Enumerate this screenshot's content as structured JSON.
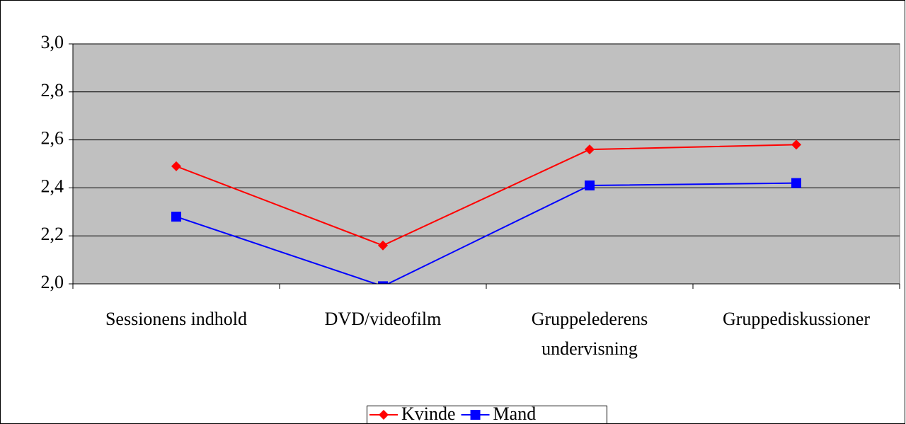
{
  "chart_data": {
    "type": "line",
    "categories": [
      "Sessionens indhold",
      "DVD/videofilm",
      "Gruppelederens undervisning",
      "Gruppediskussioner"
    ],
    "series": [
      {
        "name": "Kvinde",
        "color": "#ff0000",
        "marker": "diamond",
        "values": [
          2.49,
          2.16,
          2.56,
          2.58
        ]
      },
      {
        "name": "Mand",
        "color": "#0000ff",
        "marker": "square",
        "values": [
          2.28,
          1.99,
          2.41,
          2.42
        ]
      }
    ],
    "ylim": [
      2.0,
      3.0
    ],
    "yticks": [
      {
        "value": 2.0,
        "label": "2,0"
      },
      {
        "value": 2.2,
        "label": "2,2"
      },
      {
        "value": 2.4,
        "label": "2,4"
      },
      {
        "value": 2.6,
        "label": "2,6"
      },
      {
        "value": 2.8,
        "label": "2,8"
      },
      {
        "value": 3.0,
        "label": "3,0"
      }
    ],
    "grid": true,
    "legend": "bottom"
  }
}
